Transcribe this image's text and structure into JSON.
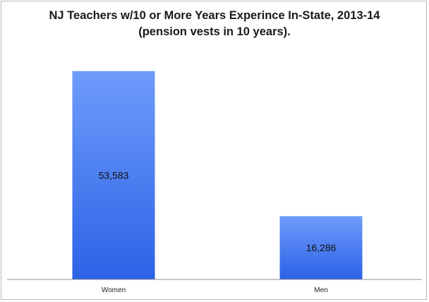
{
  "chart_data": {
    "type": "bar",
    "title": "NJ Teachers w/10 or More Years Experince In-State, 2013-14",
    "subtitle": "(pension vests in 10 years).",
    "categories": [
      "Women",
      "Men"
    ],
    "values": [
      53583,
      16286
    ],
    "value_labels": [
      "53,583",
      "16,286"
    ],
    "ylim": [
      0,
      60000
    ],
    "xlabel": "",
    "ylabel": "",
    "grid": false,
    "legend": "none",
    "colors": {
      "bar_top": "#6f9cfb",
      "bar_bottom": "#2c62e6",
      "axis": "#8c8c8c"
    }
  }
}
